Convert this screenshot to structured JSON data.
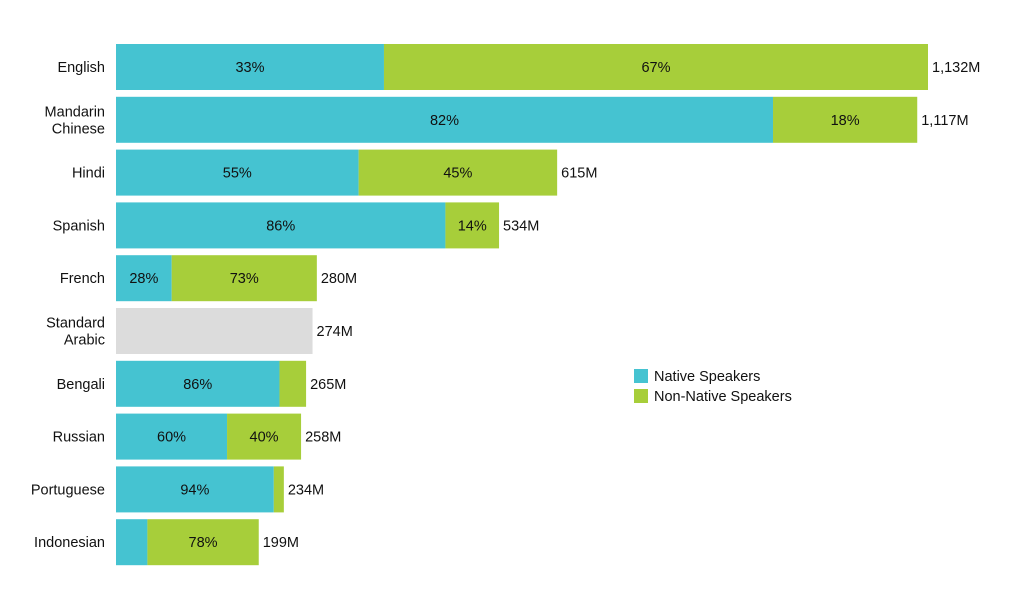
{
  "chart_data": {
    "type": "bar",
    "orientation": "horizontal",
    "stacked": true,
    "categories": [
      "English",
      "Mandarin Chinese",
      "Hindi",
      "Spanish",
      "French",
      "Standard Arabic",
      "Bengali",
      "Russian",
      "Portuguese",
      "Indonesian"
    ],
    "category_label_lines": [
      [
        "English"
      ],
      [
        "Mandarin",
        "Chinese"
      ],
      [
        "Hindi"
      ],
      [
        "Spanish"
      ],
      [
        "French"
      ],
      [
        "Standard",
        "Arabic"
      ],
      [
        "Bengali"
      ],
      [
        "Russian"
      ],
      [
        "Portuguese"
      ],
      [
        "Indonesian"
      ]
    ],
    "totals": [
      1132,
      1117,
      615,
      534,
      280,
      274,
      265,
      258,
      234,
      199
    ],
    "total_labels": [
      "1,132M",
      "1,117M",
      "615M",
      "534M",
      "280M",
      "274M",
      "265M",
      "258M",
      "234M",
      "199M"
    ],
    "series": [
      {
        "name": "Native Speakers",
        "color": "#45C3D1",
        "share_percent": [
          33,
          82,
          55,
          86,
          28,
          null,
          86,
          60,
          94,
          22
        ],
        "data_labels": [
          "33%",
          "82%",
          "55%",
          "86%",
          "28%",
          "",
          "86%",
          "60%",
          "94%",
          ""
        ]
      },
      {
        "name": "Non-Native Speakers",
        "color": "#A7CE3A",
        "share_percent": [
          67,
          18,
          45,
          14,
          73,
          null,
          14,
          40,
          6,
          78
        ],
        "data_labels": [
          "67%",
          "18%",
          "45%",
          "14%",
          "73%",
          "",
          "",
          "40%",
          "",
          "78%"
        ]
      }
    ],
    "unsplit_color": "#DCDCDC",
    "xlim": [
      0,
      1132
    ],
    "legend_position": "right",
    "grid": false
  }
}
